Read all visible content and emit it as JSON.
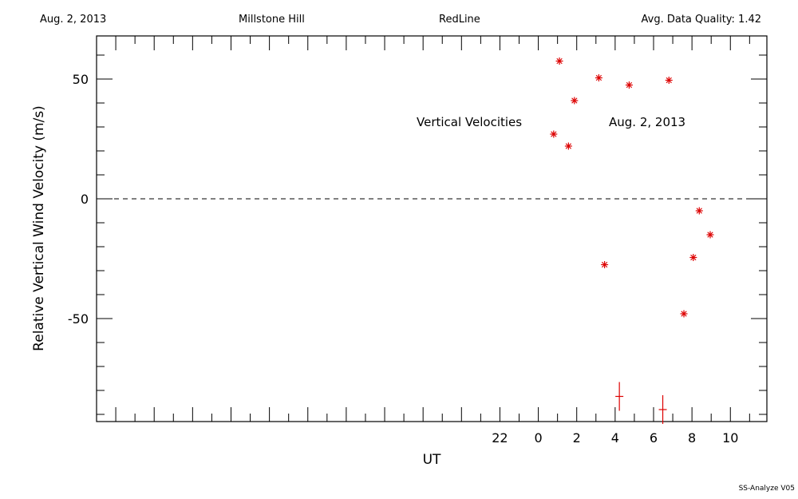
{
  "header": {
    "date": "Aug. 2, 2013",
    "site": "Millstone Hill",
    "line": "RedLine",
    "quality": "Avg. Data Quality: 1.42"
  },
  "footer": "SS-Analyze V05",
  "chart_data": {
    "type": "scatter",
    "xlabel": "UT",
    "ylabel": "Relative Vertical Wind Velocity (m/s)",
    "xlim": [
      -23,
      11.9
    ],
    "ylim": [
      -93,
      68
    ],
    "x_ticks": [
      22,
      0,
      2,
      4,
      6,
      8,
      10
    ],
    "y_ticks": [
      50,
      0,
      -50
    ],
    "reference_line_y": 0,
    "marker_color": "#dd0000",
    "annotations": [
      "Vertical Velocities",
      "Aug. 2, 2013"
    ],
    "points": [
      {
        "x": 0.8,
        "y": 27,
        "err": 0
      },
      {
        "x": 1.1,
        "y": 57.5,
        "err": 0
      },
      {
        "x": 1.57,
        "y": 22,
        "err": 0
      },
      {
        "x": 1.88,
        "y": 41,
        "err": 0
      },
      {
        "x": 3.15,
        "y": 50.5,
        "err": 0
      },
      {
        "x": 3.45,
        "y": -27.5,
        "err": 0
      },
      {
        "x": 4.22,
        "y": -82.5,
        "err": 4
      },
      {
        "x": 4.73,
        "y": 47.5,
        "err": 0
      },
      {
        "x": 6.48,
        "y": -88,
        "err": 4
      },
      {
        "x": 6.8,
        "y": 49.5,
        "err": 0
      },
      {
        "x": 7.58,
        "y": -48,
        "err": 0
      },
      {
        "x": 8.07,
        "y": -24.5,
        "err": 0
      },
      {
        "x": 8.38,
        "y": -5,
        "err": 0
      },
      {
        "x": 8.95,
        "y": -15,
        "err": 0
      }
    ]
  }
}
